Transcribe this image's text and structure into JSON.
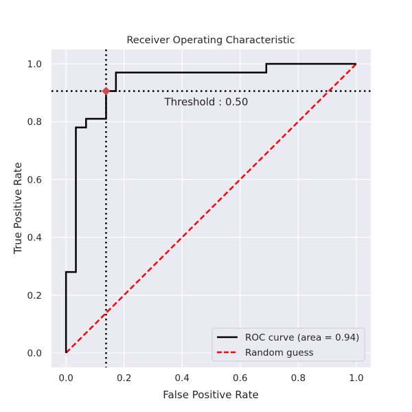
{
  "chart_data": {
    "type": "line",
    "title": "Receiver Operating Characteristic",
    "xlabel": "False Positive Rate",
    "ylabel": "True Positive Rate",
    "xlim": [
      -0.05,
      1.05
    ],
    "ylim": [
      -0.05,
      1.05
    ],
    "xticks": [
      "0.0",
      "0.2",
      "0.4",
      "0.6",
      "0.8",
      "1.0"
    ],
    "yticks": [
      "0.0",
      "0.2",
      "0.4",
      "0.6",
      "0.8",
      "1.0"
    ],
    "grid": true,
    "background_color": "#eaeaf2",
    "series": [
      {
        "name": "ROC curve (area = 0.94)",
        "color": "#000000",
        "style": "solid",
        "x": [
          0.0,
          0.0,
          0.034,
          0.034,
          0.069,
          0.069,
          0.138,
          0.138,
          0.172,
          0.172,
          0.69,
          0.69,
          1.0
        ],
        "y": [
          0.0,
          0.28,
          0.28,
          0.78,
          0.78,
          0.81,
          0.81,
          0.906,
          0.906,
          0.97,
          0.97,
          1.0,
          1.0
        ]
      },
      {
        "name": "Random guess",
        "color": "#ff0000",
        "style": "dashed",
        "x": [
          0.0,
          1.0
        ],
        "y": [
          0.0,
          1.0
        ]
      }
    ],
    "threshold": {
      "label": "Threshold : 0.50",
      "fpr": 0.138,
      "tpr": 0.906,
      "marker_color": "#c44e52",
      "line_style": "dotted"
    },
    "legend_position": "bottom-right"
  }
}
